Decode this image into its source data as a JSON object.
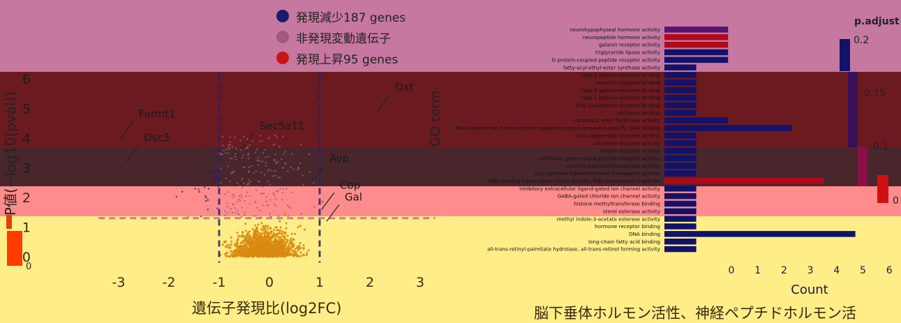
{
  "legend": {
    "down_label": "発現減少187 genes",
    "ns_label": "非発現変動遺伝子",
    "up_label": "発現上昇95 genes",
    "down_color": "#1a1a6e",
    "ns_color": "#a05a7a",
    "up_color": "#c81414"
  },
  "volcano": {
    "x_title": "遺伝子発現比(log2FC)",
    "y_title": "P値(−log10(pval))",
    "x_ticks": [
      "-3",
      "-2",
      "-1",
      "0",
      "1",
      "2",
      "3"
    ],
    "y_ticks": [
      "0",
      "1",
      "2",
      "3",
      "4",
      "5",
      "6"
    ]
  },
  "go_panel": {
    "x_title": "Count",
    "y_title": "GO term",
    "x_ticks": [
      "0",
      "1",
      "2",
      "3",
      "4",
      "5",
      "6"
    ],
    "colorbar_title": "p.adjust",
    "colorbar_ticks": [
      "0.2",
      "0.15",
      "0.1",
      "0"
    ]
  },
  "caption": "脳下垂体ホルモン活性、神経ペプチドホルモン活",
  "background_bands": [
    {
      "color": "#c678a0"
    },
    {
      "color": "#6b1a20"
    },
    {
      "color": "#48262c"
    },
    {
      "color": "#ff8c8c"
    },
    {
      "color": "#ffee88"
    }
  ],
  "chart_data": [
    {
      "type": "scatter",
      "title": "",
      "xlabel": "遺伝子発現比(log2FC)",
      "ylabel": "P値(−log10(pval))",
      "xlim": [
        -3.6,
        3.4
      ],
      "ylim": [
        -0.3,
        6.3
      ],
      "thresholds": {
        "log2fc": [
          -1,
          1
        ],
        "neg_log10_pval": 1.3
      },
      "labeled_genes": [
        {
          "name": "Oxt",
          "x": 2.5,
          "y": 5.6
        },
        {
          "name": "Fermt1",
          "x": -2.6,
          "y": 4.7
        },
        {
          "name": "Sec5a11",
          "x": -0.2,
          "y": 4.3
        },
        {
          "name": "Dsc3",
          "x": -2.5,
          "y": 3.9
        },
        {
          "name": "Avp",
          "x": 1.2,
          "y": 3.2
        },
        {
          "name": "Cbp",
          "x": 1.4,
          "y": 2.3
        },
        {
          "name": "Gal",
          "x": 1.5,
          "y": 1.9
        }
      ]
    },
    {
      "type": "bar",
      "orientation": "horizontal",
      "xlabel": "Count",
      "ylabel": "GO term",
      "xlim": [
        0,
        6
      ],
      "colorbar": {
        "label": "p.adjust",
        "range": [
          0,
          0.2
        ]
      },
      "categories": [
        "neurohypophyseal hormone activity",
        "neuropeptide hormone activity",
        "galanin receptor activity",
        "triglyceride lipase activity",
        "G protein-coupled peptide receptor activity",
        "fatty-acyl-ethyl-ester synthase activity",
        "type 2 galanin receptor binding",
        "oxytocin receptor binding",
        "type 3 galanin receptor binding",
        "type 1 galanin receptor binding",
        "V1B vasopressin receptor binding",
        "calcitonin binding",
        "carboxylic ester hydrolase activity",
        "RNA polymerase II transcription regulatory region sequence-specific DNA binding",
        "V1A vasopressin receptor binding",
        "calcitonin receptor activity",
        "amylin receptor activity",
        "calcitonin gene-related peptide receptor activity",
        "serine C-palmitoyltransferase activity",
        "acyl carnitine transmembrane transporter activity",
        "DNA-binding transcription factor activity, RNA polymerase II-specific",
        "inhibitory extracellular ligand-gated ion channel activity",
        "GABA-gated chloride ion channel activity",
        "histone methyltransferase binding",
        "sterol esterase activity",
        "methyl indole-3-acetate esterase activity",
        "hormone receptor binding",
        "DNA binding",
        "long-chain fatty acid binding",
        "all-trans-retinyl-palmitate hydrolase, all-trans-retinol forming activity"
      ],
      "values": [
        2,
        2,
        2,
        2,
        2,
        1,
        1,
        1,
        1,
        1,
        1,
        1,
        2,
        4,
        1,
        1,
        1,
        1,
        1,
        1,
        5,
        1,
        1,
        1,
        1,
        1,
        1,
        6,
        1,
        1
      ],
      "p_adjust": [
        0.18,
        0.16,
        0.16,
        0.2,
        0.2,
        0.2,
        0.2,
        0.2,
        0.2,
        0.2,
        0.2,
        0.2,
        0.2,
        0.2,
        0.2,
        0.2,
        0.2,
        0.2,
        0.2,
        0.2,
        0.16,
        0.2,
        0.2,
        0.2,
        0.2,
        0.2,
        0.2,
        0.2,
        0.2,
        0.2
      ]
    }
  ]
}
